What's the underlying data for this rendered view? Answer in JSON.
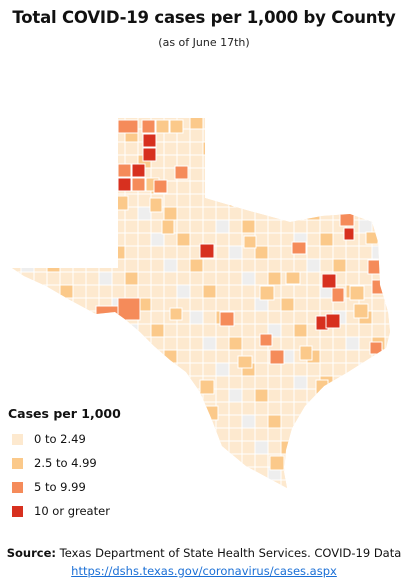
{
  "title": "Total COVID-19 cases per 1,000 by County",
  "subtitle": "(as of June 17th)",
  "legend": {
    "title": "Cases per 1,000",
    "items": [
      {
        "label": "0 to 2.49",
        "color": "#fde9cf"
      },
      {
        "label": "2.5 to 4.99",
        "color": "#fbc98a"
      },
      {
        "label": "5 to 9.99",
        "color": "#f58b5a"
      },
      {
        "label": "10 or greater",
        "color": "#d7301f"
      }
    ]
  },
  "colors": {
    "no_data": "#eeeeee",
    "county_border": "#ffffff"
  },
  "source": {
    "label": "Source:",
    "text": " Texas Department of State Health Services. COVID-19 Data",
    "url": "https://dshs.texas.gov/coronavirus/cases.aspx"
  }
}
